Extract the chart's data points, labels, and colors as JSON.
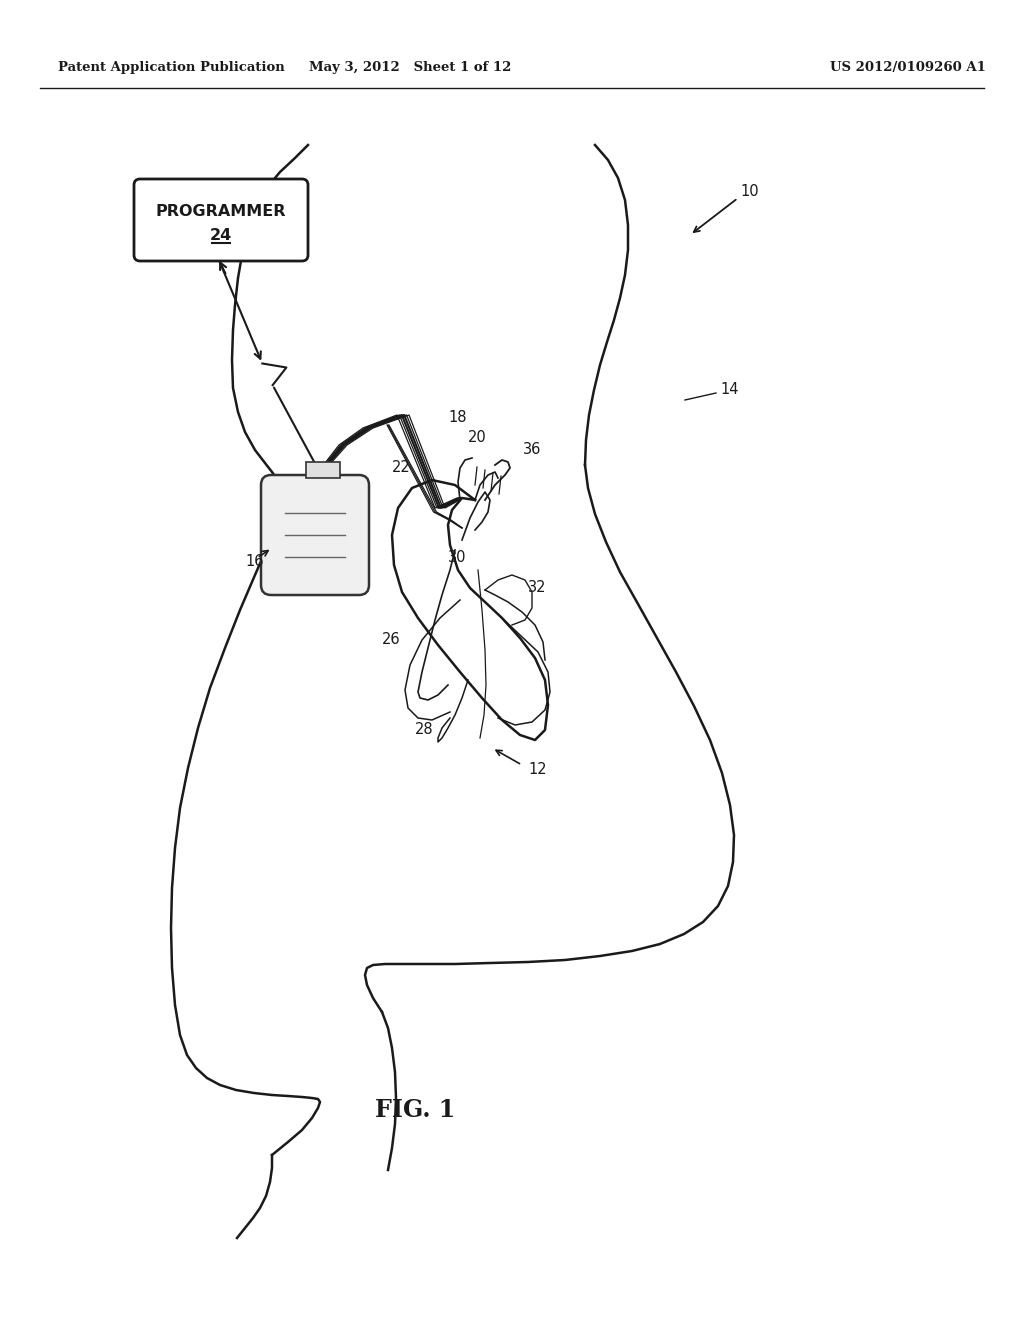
{
  "bg_color": "#ffffff",
  "header_left": "Patent Application Publication",
  "header_mid": "May 3, 2012   Sheet 1 of 12",
  "header_right": "US 2012/0109260 A1",
  "fig_label": "FIG. 1",
  "label_10": "10",
  "label_12": "12",
  "label_14": "14",
  "label_16": "16",
  "label_18": "18",
  "label_20": "20",
  "label_22": "22",
  "label_26": "26",
  "label_28": "28",
  "label_30": "30",
  "label_32": "32",
  "label_36": "36",
  "programmer_text": "PROGRAMMER",
  "programmer_subtext": "24",
  "color_line": "#1a1a1a"
}
